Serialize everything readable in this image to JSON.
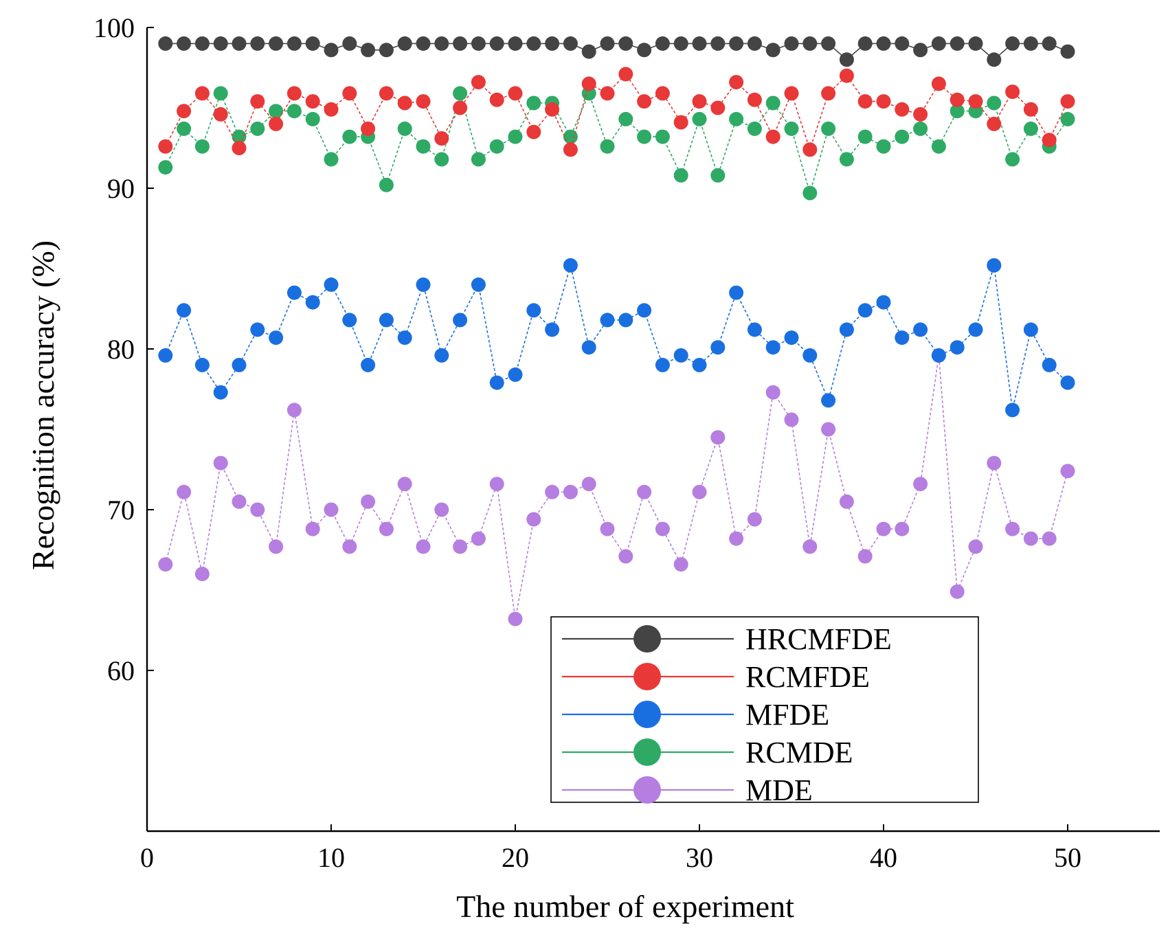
{
  "chart_data": {
    "type": "line",
    "title": "",
    "xlabel": "The number of experiment",
    "ylabel": "Recognition accuracy (%)",
    "xlim": [
      0,
      55
    ],
    "ylim": [
      50,
      100
    ],
    "xticks": [
      0,
      10,
      20,
      30,
      40,
      50
    ],
    "yticks": [
      60,
      70,
      80,
      90,
      100
    ],
    "legend_position": "bottom-center-right",
    "x": [
      1,
      2,
      3,
      4,
      5,
      6,
      7,
      8,
      9,
      10,
      11,
      12,
      13,
      14,
      15,
      16,
      17,
      18,
      19,
      20,
      21,
      22,
      23,
      24,
      25,
      26,
      27,
      28,
      29,
      30,
      31,
      32,
      33,
      34,
      35,
      36,
      37,
      38,
      39,
      40,
      41,
      42,
      43,
      44,
      45,
      46,
      47,
      48,
      49,
      50
    ],
    "series": [
      {
        "name": "HRCMFDE",
        "color": "#444444",
        "values": [
          99.0,
          99.0,
          99.0,
          99.0,
          99.0,
          99.0,
          99.0,
          99.0,
          99.0,
          98.6,
          99.0,
          98.6,
          98.6,
          99.0,
          99.0,
          99.0,
          99.0,
          99.0,
          99.0,
          99.0,
          99.0,
          99.0,
          99.0,
          98.5,
          99.0,
          99.0,
          98.6,
          99.0,
          99.0,
          99.0,
          99.0,
          99.0,
          99.0,
          98.6,
          99.0,
          99.0,
          99.0,
          98.0,
          99.0,
          99.0,
          99.0,
          98.6,
          99.0,
          99.0,
          99.0,
          98.0,
          99.0,
          99.0,
          99.0,
          98.5
        ]
      },
      {
        "name": "RCMFDE",
        "color": "#e83838",
        "values": [
          92.6,
          94.8,
          95.9,
          94.6,
          92.5,
          95.4,
          94.0,
          95.9,
          95.4,
          94.9,
          95.9,
          93.7,
          95.9,
          95.3,
          95.4,
          93.1,
          95.0,
          96.6,
          95.5,
          95.9,
          93.5,
          94.9,
          92.4,
          96.5,
          95.9,
          97.1,
          95.4,
          95.9,
          94.1,
          95.4,
          95.0,
          96.6,
          95.5,
          93.2,
          95.9,
          92.4,
          95.9,
          97.0,
          95.4,
          95.4,
          94.9,
          94.6,
          96.5,
          95.5,
          95.4,
          94.0,
          96.0,
          94.9,
          93.0,
          95.4
        ]
      },
      {
        "name": "MFDE",
        "color": "#1a6fe0",
        "values": [
          79.6,
          82.4,
          79.0,
          77.3,
          79.0,
          81.2,
          80.7,
          83.5,
          82.9,
          84.0,
          81.8,
          79.0,
          81.8,
          80.7,
          84.0,
          79.6,
          81.8,
          84.0,
          77.9,
          78.4,
          82.4,
          81.2,
          85.2,
          80.1,
          81.8,
          81.8,
          82.4,
          79.0,
          79.6,
          79.0,
          80.1,
          83.5,
          81.2,
          80.1,
          80.7,
          79.6,
          76.8,
          81.2,
          82.4,
          82.9,
          80.7,
          81.2,
          79.6,
          80.1,
          81.2,
          85.2,
          76.2,
          81.2,
          79.0,
          77.9
        ]
      },
      {
        "name": "RCMDE",
        "color": "#2eaa64",
        "values": [
          91.3,
          93.7,
          92.6,
          95.9,
          93.2,
          93.7,
          94.8,
          94.8,
          94.3,
          91.8,
          93.2,
          93.2,
          90.2,
          93.7,
          92.6,
          91.8,
          95.9,
          91.8,
          92.6,
          93.2,
          95.3,
          95.3,
          93.2,
          95.9,
          92.6,
          94.3,
          93.2,
          93.2,
          90.8,
          94.3,
          90.8,
          94.3,
          93.7,
          95.3,
          93.7,
          89.7,
          93.7,
          91.8,
          93.2,
          92.6,
          93.2,
          93.7,
          92.6,
          94.8,
          94.8,
          95.3,
          91.8,
          93.7,
          92.6,
          94.3
        ]
      },
      {
        "name": "MDE",
        "color": "#b57ee0",
        "values": [
          66.6,
          71.1,
          66.0,
          72.9,
          70.5,
          70.0,
          67.7,
          76.2,
          68.8,
          70.0,
          67.7,
          70.5,
          68.8,
          71.6,
          67.7,
          70.0,
          67.7,
          68.2,
          71.6,
          63.2,
          69.4,
          71.1,
          71.1,
          71.6,
          68.8,
          67.1,
          71.1,
          68.8,
          66.6,
          71.1,
          74.5,
          68.2,
          69.4,
          77.3,
          75.6,
          67.7,
          75.0,
          70.5,
          67.1,
          68.8,
          68.8,
          71.6,
          79.6,
          64.9,
          67.7,
          72.9,
          68.8,
          68.2,
          68.2,
          72.4
        ]
      }
    ]
  }
}
